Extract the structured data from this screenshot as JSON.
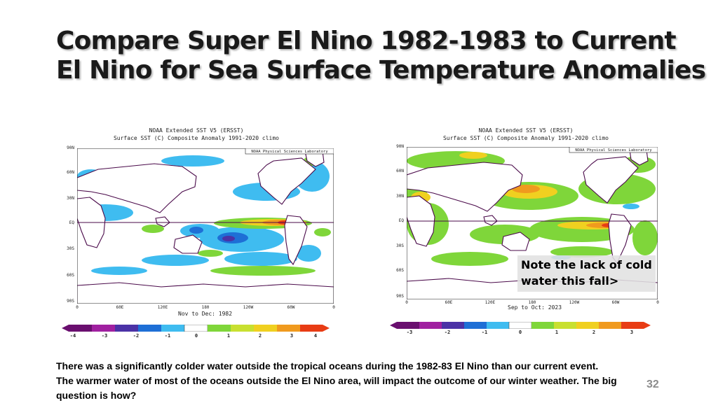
{
  "title": {
    "line1": "Compare Super El Nino 1982-1983 to Current",
    "line2": "El Nino for Sea Surface Temperature Anomalies"
  },
  "maps": [
    {
      "header_line1": "NOAA Extended SST V5 (ERSST)",
      "header_line2": "Surface SST (C) Composite Anomaly 1991-2020 climo",
      "source": "NOAA Physical Sciences Laboratory",
      "period": "Nov to Dec: 1982",
      "lat_labels": [
        "90N",
        "60N",
        "30N",
        "EQ",
        "30S",
        "60S",
        "90S"
      ],
      "lon_labels": [
        "0",
        "60E",
        "120E",
        "180",
        "120W",
        "60W",
        "0"
      ],
      "colorbar_ticks": [
        "-4",
        "-3",
        "-2",
        "-1",
        "0",
        "1",
        "2",
        "3",
        "4"
      ]
    },
    {
      "header_line1": "NOAA Extended SST V5 (ERSST)",
      "header_line2": "Surface SST (C) Composite Anomaly 1991-2020 climo",
      "source": "NOAA Physical Sciences Laboratory",
      "period": "Sep to Oct: 2023",
      "lat_labels": [
        "90N",
        "60N",
        "30N",
        "EQ",
        "30S",
        "60S",
        "90S"
      ],
      "lon_labels": [
        "0",
        "60E",
        "120E",
        "180",
        "120W",
        "60W",
        "0"
      ],
      "colorbar_ticks": [
        "-3",
        "-2",
        "-1",
        "0",
        "1",
        "2",
        "3"
      ]
    }
  ],
  "note": "Note the lack of cold water this fall>",
  "footer": "There was a significantly colder water outside the tropical oceans during the 1982-83 El Nino than our current event.  The warmer water of most of the oceans outside the El Nino area, will impact the outcome of our winter weather.  The big question is how?",
  "page_number": "32",
  "colors": {
    "title_text": "#1a1a1a",
    "page_number": "#8c8c8c",
    "note_background": "#e1e1e1",
    "colorbar": [
      "#6a0f6f",
      "#a020a0",
      "#4b32a6",
      "#1e6fd6",
      "#3fbcf0",
      "#ffffff",
      "#7fd63a",
      "#c8e030",
      "#f0d020",
      "#f09a1e",
      "#e83c14"
    ]
  }
}
